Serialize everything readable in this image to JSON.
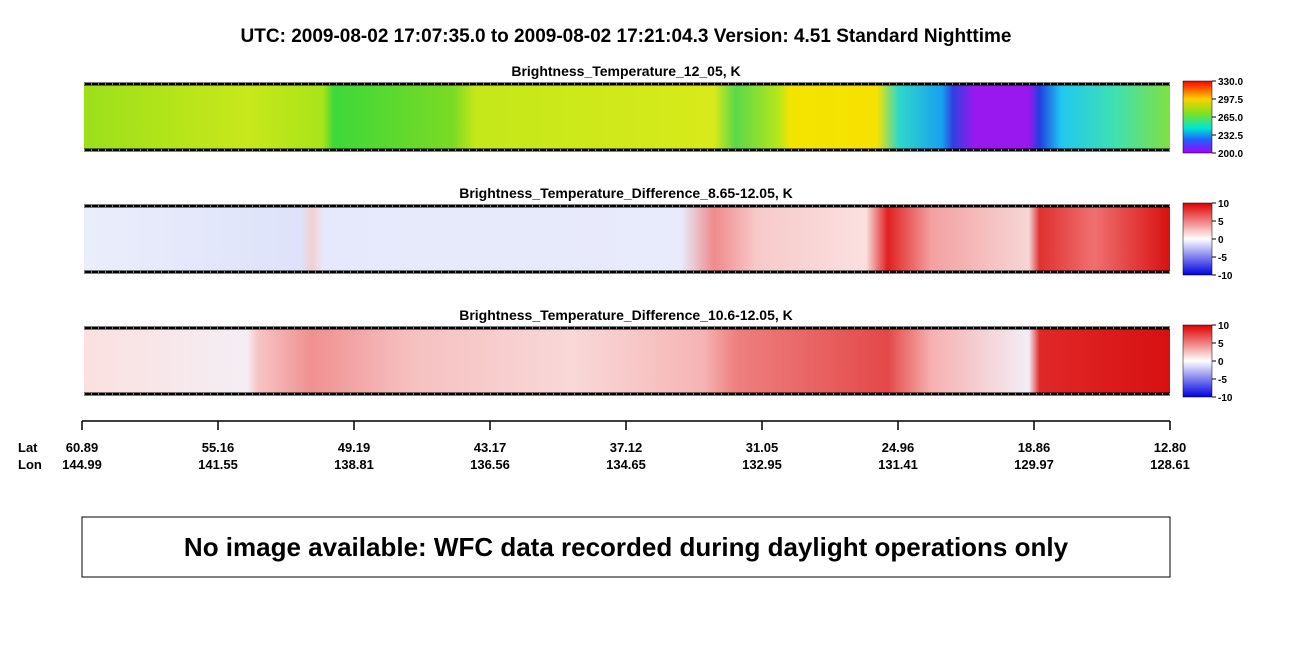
{
  "header": {
    "title": "UTC:  2009-08-02   17:07:35.0  to  2009-08-02   17:21:04.3    Version: 4.51  Standard Nighttime"
  },
  "panels": [
    {
      "title": "Brightness_Temperature_12_05, K",
      "colorbar_labels": [
        "330.0",
        "297.5",
        "265.0",
        "232.5",
        "200.0"
      ]
    },
    {
      "title": "Brightness_Temperature_Difference_8.65-12.05, K",
      "colorbar_labels": [
        "10",
        "5",
        "0",
        "-5",
        "-10"
      ]
    },
    {
      "title": "Brightness_Temperature_Difference_10.6-12.05, K",
      "colorbar_labels": [
        "10",
        "5",
        "0",
        "-5",
        "-10"
      ]
    }
  ],
  "axis": {
    "lat_label": "Lat",
    "lon_label": "Lon",
    "lat": [
      "60.89",
      "55.16",
      "49.19",
      "43.17",
      "37.12",
      "31.05",
      "24.96",
      "18.86",
      "12.80"
    ],
    "lon": [
      "144.99",
      "141.55",
      "138.81",
      "136.56",
      "134.65",
      "132.95",
      "131.41",
      "129.97",
      "128.61"
    ]
  },
  "message": "No image available: WFC data recorded during daylight operations only"
}
